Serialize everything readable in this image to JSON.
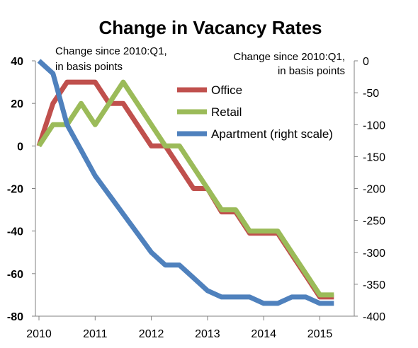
{
  "chart_data": {
    "type": "line",
    "title": "Change in Vacancy Rates",
    "left_axis_note": [
      "Change since 2010:Q1,",
      "in basis points"
    ],
    "right_axis_note": [
      "Change since 2010:Q1,",
      "in basis points"
    ],
    "x_tick_labels": [
      "2010",
      "2011",
      "2012",
      "2013",
      "2014",
      "2015"
    ],
    "x_range": [
      2010,
      2015.5
    ],
    "y_left_range": [
      -80,
      40
    ],
    "y_left_ticks": [
      "40",
      "20",
      "0",
      "-20",
      "-40",
      "-60",
      "-80"
    ],
    "y_right_range": [
      -400,
      0
    ],
    "y_right_ticks": [
      "0",
      "-50",
      "-100",
      "-150",
      "-200",
      "-250",
      "-300",
      "-350",
      "-400"
    ],
    "grid": false,
    "legend_position": "top-right, inside plot",
    "series": [
      {
        "name": "Office",
        "axis": "left",
        "color": "#c0504d",
        "x": [
          2010.0,
          2010.25,
          2010.5,
          2010.75,
          2011.0,
          2011.25,
          2011.5,
          2011.75,
          2012.0,
          2012.25,
          2012.5,
          2012.75,
          2013.0,
          2013.25,
          2013.5,
          2013.75,
          2014.0,
          2014.25,
          2014.5,
          2014.75,
          2015.0,
          2015.25
        ],
        "values": [
          0,
          20,
          30,
          30,
          30,
          20,
          20,
          10,
          0,
          0,
          -10,
          -20,
          -20,
          -31,
          -31,
          -41,
          -41,
          -41,
          -51,
          -61,
          -71,
          -71
        ]
      },
      {
        "name": "Retail",
        "axis": "left",
        "color": "#9bbb59",
        "x": [
          2010.0,
          2010.25,
          2010.5,
          2010.75,
          2011.0,
          2011.25,
          2011.5,
          2011.75,
          2012.0,
          2012.25,
          2012.5,
          2012.75,
          2013.0,
          2013.25,
          2013.5,
          2013.75,
          2014.0,
          2014.25,
          2014.5,
          2014.75,
          2015.0,
          2015.25
        ],
        "values": [
          0,
          10,
          10,
          20,
          10,
          20,
          30,
          20,
          10,
          0,
          0,
          -10,
          -20,
          -30,
          -30,
          -40,
          -40,
          -40,
          -50,
          -60,
          -70,
          -70
        ]
      },
      {
        "name": "Apartment (right scale)",
        "axis": "right",
        "color": "#4f81bd",
        "x": [
          2010.0,
          2010.25,
          2010.5,
          2010.75,
          2011.0,
          2011.25,
          2011.5,
          2011.75,
          2012.0,
          2012.25,
          2012.5,
          2012.75,
          2013.0,
          2013.25,
          2013.5,
          2013.75,
          2014.0,
          2014.25,
          2014.5,
          2014.75,
          2015.0,
          2015.25
        ],
        "values": [
          0,
          -20,
          -100,
          -140,
          -180,
          -210,
          -240,
          -270,
          -300,
          -320,
          -320,
          -340,
          -360,
          -370,
          -370,
          -370,
          -380,
          -380,
          -370,
          -370,
          -380,
          -380
        ]
      }
    ]
  }
}
